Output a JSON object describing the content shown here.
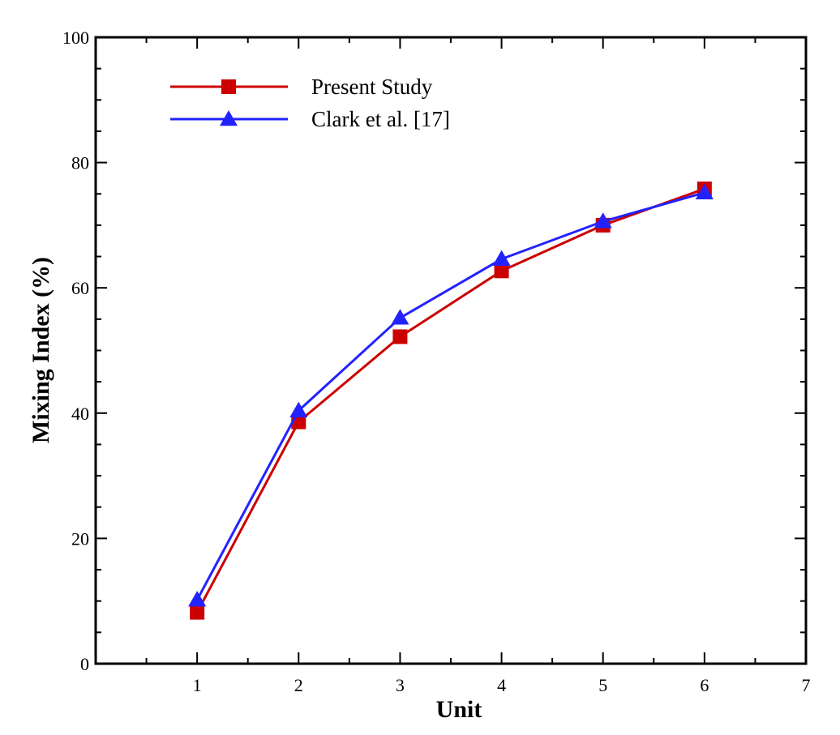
{
  "chart_data": {
    "type": "line",
    "title": "",
    "xlabel": "Unit",
    "ylabel": "Mixing Index (%)",
    "xlim": [
      0,
      7
    ],
    "ylim": [
      0,
      100
    ],
    "x_ticks": [
      "1",
      "2",
      "3",
      "4",
      "5",
      "6",
      "7"
    ],
    "y_ticks": [
      "0",
      "20",
      "40",
      "60",
      "80",
      "100"
    ],
    "grid": false,
    "legend_position": "top-left",
    "series": [
      {
        "name": "Present Study",
        "marker": "square",
        "color": "#cc0000",
        "x": [
          1,
          2,
          3,
          4,
          5,
          6
        ],
        "values": [
          8.2,
          38.6,
          52.2,
          62.7,
          70.0,
          75.8
        ]
      },
      {
        "name": "Clark et al. [17]",
        "marker": "triangle",
        "color": "#2222ff",
        "x": [
          1,
          2,
          3,
          4,
          5,
          6
        ],
        "values": [
          10.2,
          40.4,
          55.2,
          64.6,
          70.6,
          75.2
        ]
      }
    ]
  }
}
